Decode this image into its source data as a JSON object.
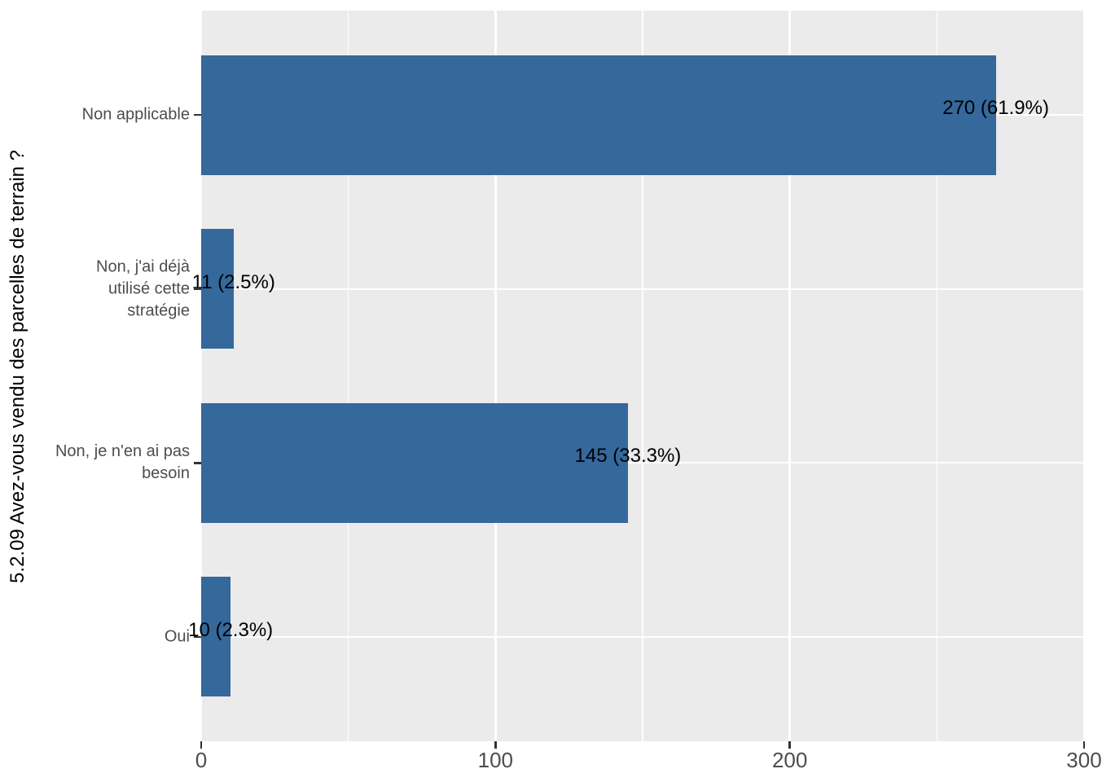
{
  "chart_data": {
    "type": "bar",
    "orientation": "horizontal",
    "title": "",
    "ylabel": "5.2.09 Avez-vous vendu des parcelles de terrain ?",
    "xlabel": "",
    "categories": [
      "Non applicable",
      "Non, j'ai déjà utilisé cette stratégie",
      "Non, je n'en ai pas besoin",
      "Oui"
    ],
    "category_display_lines": [
      [
        "Non applicable"
      ],
      [
        "Non, j'ai déjà",
        "utilisé cette",
        "stratégie"
      ],
      [
        "Non, je n'en ai pas",
        "besoin"
      ],
      [
        "Oui"
      ]
    ],
    "values": [
      270,
      11,
      145,
      10
    ],
    "percentages": [
      61.9,
      2.5,
      33.3,
      2.3
    ],
    "bar_labels": [
      "270 (61.9%)",
      "11 (2.5%)",
      "145 (33.3%)",
      "10 (2.3%)"
    ],
    "x_axis": {
      "tick_values": [
        0,
        100,
        200,
        300
      ],
      "tick_labels": [
        "0",
        "100",
        "200",
        "300"
      ],
      "minor_tick_values": [
        50,
        150,
        250
      ],
      "limits": [
        0,
        300
      ]
    },
    "grid": true,
    "legend_position": "none",
    "colors": {
      "bar": "#35689B",
      "panel_background": "#EBEBEB",
      "grid": "#FFFFFF",
      "axis_text": "#4D4D4D",
      "tick_marks": "#333333",
      "bar_label_text": "#000000",
      "axis_title_text": "#000000"
    }
  }
}
